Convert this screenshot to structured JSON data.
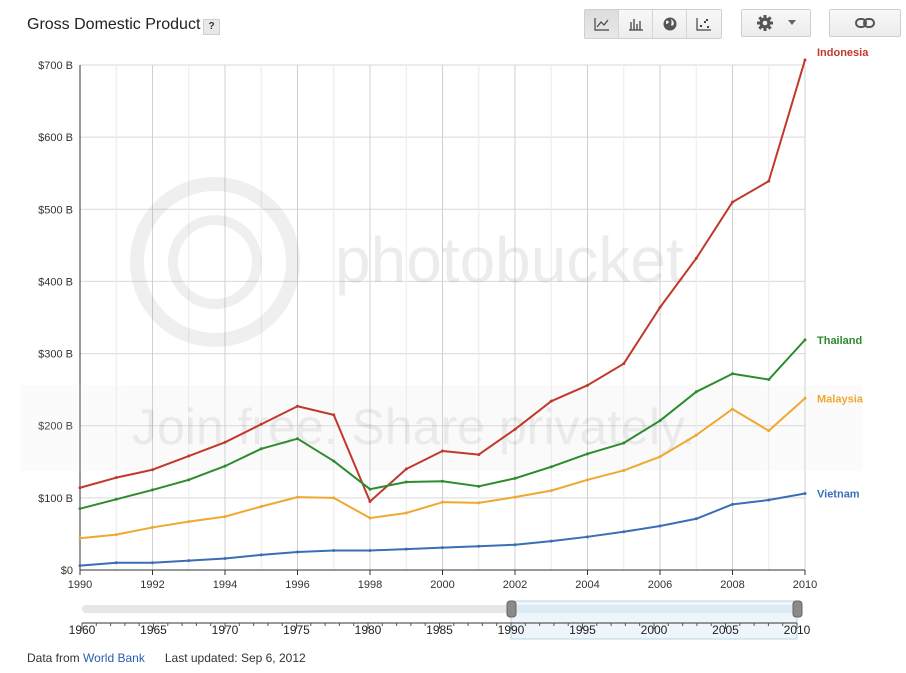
{
  "header": {
    "title": "Gross Domestic Product",
    "help_label": "?",
    "view_buttons": [
      {
        "name": "line-chart-icon",
        "active": true
      },
      {
        "name": "bar-chart-icon",
        "active": false
      },
      {
        "name": "globe-icon",
        "active": false
      },
      {
        "name": "scatter-icon",
        "active": false
      }
    ]
  },
  "colors": {
    "Indonesia": "#c0392b",
    "Thailand": "#2e8b2e",
    "Malaysia": "#f0a830",
    "Vietnam": "#3a6eb5"
  },
  "chart_data": {
    "type": "line",
    "title": "Gross Domestic Product",
    "x": [
      1990,
      1991,
      1992,
      1993,
      1994,
      1995,
      1996,
      1997,
      1998,
      1999,
      2000,
      2001,
      2002,
      2003,
      2004,
      2005,
      2006,
      2007,
      2008,
      2009,
      2010
    ],
    "series": [
      {
        "name": "Indonesia",
        "values": [
          114,
          128,
          139,
          158,
          177,
          202,
          227,
          215,
          95,
          140,
          165,
          160,
          195,
          234,
          256,
          286,
          364,
          432,
          510,
          539,
          707
        ]
      },
      {
        "name": "Thailand",
        "values": [
          85,
          98,
          111,
          125,
          144,
          168,
          182,
          151,
          112,
          122,
          123,
          116,
          127,
          143,
          161,
          176,
          207,
          247,
          272,
          264,
          319
        ]
      },
      {
        "name": "Malaysia",
        "values": [
          44,
          49,
          59,
          67,
          74,
          88,
          101,
          100,
          72,
          79,
          94,
          93,
          101,
          110,
          125,
          138,
          157,
          187,
          223,
          193,
          238
        ]
      },
      {
        "name": "Vietnam",
        "values": [
          6,
          10,
          10,
          13,
          16,
          21,
          25,
          27,
          27,
          29,
          31,
          33,
          35,
          40,
          46,
          53,
          61,
          71,
          91,
          97,
          106
        ]
      }
    ],
    "xticks": [
      1990,
      1992,
      1994,
      1996,
      1998,
      2000,
      2002,
      2004,
      2006,
      2008,
      2010
    ],
    "yticks": [
      0,
      100,
      200,
      300,
      400,
      500,
      600,
      700
    ],
    "ytick_labels": [
      "$0",
      "$100 B",
      "$200 B",
      "$300 B",
      "$400 B",
      "$500 B",
      "$600 B",
      "$700 B"
    ],
    "xlim": [
      1990,
      2010
    ],
    "ylim": [
      0,
      700
    ],
    "grid": true,
    "legend": "right-end labels"
  },
  "range_slider": {
    "ticks": [
      1960,
      1965,
      1970,
      1975,
      1980,
      1985,
      1990,
      1995,
      2000,
      2005,
      2010
    ],
    "span": [
      1960,
      2010
    ],
    "selected": [
      1990,
      2010
    ]
  },
  "watermark": {
    "brand": "photobucket",
    "tagline": "Join free. Share privately."
  },
  "footer": {
    "source_prefix": "Data from",
    "source_link": "World Bank",
    "updated_label": "Last updated:",
    "updated_date": "Sep 6, 2012"
  }
}
